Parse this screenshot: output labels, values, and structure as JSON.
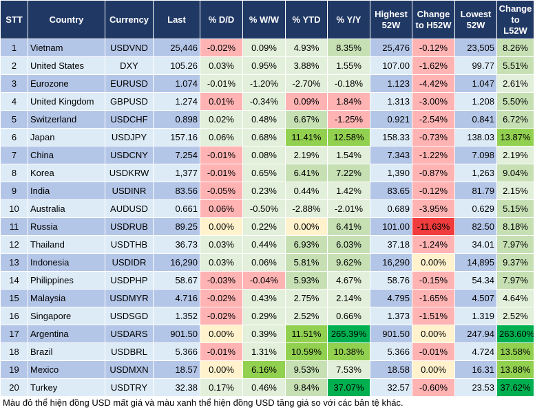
{
  "headers": [
    "STT",
    "Country",
    "Currency",
    "Last",
    "% D/D",
    "% W/W",
    "% YTD",
    "% Y/Y",
    "Highest 52W",
    "Change to H52W",
    "Lowest 52W",
    "Change to L52W"
  ],
  "palette": {
    "header_bg": "#203864",
    "row_odd": "#b4c6e7",
    "row_even": "#ddebf7",
    "pink": "#ffb3b3",
    "light_green": "#e2efda",
    "green": "#c6e0b4",
    "bright_green": "#92d050",
    "dark_green": "#00b050",
    "yellow": "#fff2cc",
    "red": "#f03c3c"
  },
  "rows": [
    {
      "stt": "1",
      "country": "Vietnam",
      "currency": "USDVND",
      "last": "25,446",
      "dd": "-0.02%",
      "ww": "0.09%",
      "ytd": "4.93%",
      "yy": "8.35%",
      "high": "25,476",
      "ch": "-0.12%",
      "low": "23,505",
      "cl": "8.26%",
      "colors": [
        "#ffb3b3",
        "#e2efda",
        "#e2efda",
        "#c6e0b4",
        "#ffb3b3",
        "#c6e0b4"
      ]
    },
    {
      "stt": "2",
      "country": "United States",
      "currency": "DXY",
      "last": "105.26",
      "dd": "0.03%",
      "ww": "0.95%",
      "ytd": "3.88%",
      "yy": "1.55%",
      "high": "107.00",
      "ch": "-1.62%",
      "low": "99.77",
      "cl": "5.51%",
      "colors": [
        "#e2efda",
        "#e2efda",
        "#e2efda",
        "#e2efda",
        "#ffb3b3",
        "#c6e0b4"
      ]
    },
    {
      "stt": "3",
      "country": "Eurozone",
      "currency": "EURUSD",
      "last": "1.074",
      "dd": "-0.01%",
      "ww": "-1.20%",
      "ytd": "-2.70%",
      "yy": "-0.18%",
      "high": "1.123",
      "ch": "-4.42%",
      "low": "1.047",
      "cl": "2.61%",
      "colors": [
        "#e2efda",
        "#e2efda",
        "#e2efda",
        "#e2efda",
        "#ffb3b3",
        "#e2efda"
      ]
    },
    {
      "stt": "4",
      "country": "United Kingdom",
      "currency": "GBPUSD",
      "last": "1.274",
      "dd": "0.01%",
      "ww": "-0.34%",
      "ytd": "0.09%",
      "yy": "1.84%",
      "high": "1.313",
      "ch": "-3.00%",
      "low": "1.208",
      "cl": "5.50%",
      "colors": [
        "#ffb3b3",
        "#e2efda",
        "#ffb3b3",
        "#ffb3b3",
        "#ffb3b3",
        "#c6e0b4"
      ]
    },
    {
      "stt": "5",
      "country": "Switzerland",
      "currency": "USDCHF",
      "last": "0.898",
      "dd": "0.02%",
      "ww": "0.48%",
      "ytd": "6.67%",
      "yy": "-1.25%",
      "high": "0.921",
      "ch": "-2.54%",
      "low": "0.841",
      "cl": "6.72%",
      "colors": [
        "#e2efda",
        "#e2efda",
        "#c6e0b4",
        "#ffb3b3",
        "#ffb3b3",
        "#c6e0b4"
      ]
    },
    {
      "stt": "6",
      "country": "Japan",
      "currency": "USDJPY",
      "last": "157.16",
      "dd": "0.06%",
      "ww": "0.68%",
      "ytd": "11.41%",
      "yy": "12.58%",
      "high": "158.33",
      "ch": "-0.73%",
      "low": "138.03",
      "cl": "13.87%",
      "colors": [
        "#e2efda",
        "#e2efda",
        "#92d050",
        "#92d050",
        "#ffb3b3",
        "#92d050"
      ]
    },
    {
      "stt": "7",
      "country": "China",
      "currency": "USDCNY",
      "last": "7.254",
      "dd": "-0.01%",
      "ww": "0.08%",
      "ytd": "2.19%",
      "yy": "1.54%",
      "high": "7.343",
      "ch": "-1.22%",
      "low": "7.098",
      "cl": "2.19%",
      "colors": [
        "#ffb3b3",
        "#e2efda",
        "#e2efda",
        "#e2efda",
        "#ffb3b3",
        "#e2efda"
      ]
    },
    {
      "stt": "8",
      "country": "Korea",
      "currency": "USDKRW",
      "last": "1,377",
      "dd": "-0.01%",
      "ww": "0.65%",
      "ytd": "6.41%",
      "yy": "7.22%",
      "high": "1,390",
      "ch": "-0.87%",
      "low": "1,263",
      "cl": "9.04%",
      "colors": [
        "#ffb3b3",
        "#e2efda",
        "#c6e0b4",
        "#c6e0b4",
        "#ffb3b3",
        "#c6e0b4"
      ]
    },
    {
      "stt": "9",
      "country": "India",
      "currency": "USDINR",
      "last": "83.56",
      "dd": "-0.05%",
      "ww": "0.23%",
      "ytd": "0.44%",
      "yy": "1.42%",
      "high": "83.65",
      "ch": "-0.12%",
      "low": "81.79",
      "cl": "2.15%",
      "colors": [
        "#ffb3b3",
        "#e2efda",
        "#e2efda",
        "#e2efda",
        "#ffb3b3",
        "#e2efda"
      ]
    },
    {
      "stt": "10",
      "country": "Australia",
      "currency": "AUDUSD",
      "last": "0.661",
      "dd": "0.06%",
      "ww": "-0.50%",
      "ytd": "-2.88%",
      "yy": "-2.01%",
      "high": "0.689",
      "ch": "-3.95%",
      "low": "0.629",
      "cl": "5.15%",
      "colors": [
        "#ffb3b3",
        "#e2efda",
        "#e2efda",
        "#e2efda",
        "#ffb3b3",
        "#c6e0b4"
      ]
    },
    {
      "stt": "11",
      "country": "Russia",
      "currency": "USDRUB",
      "last": "89.25",
      "dd": "0.00%",
      "ww": "0.22%",
      "ytd": "0.00%",
      "yy": "6.41%",
      "high": "101.00",
      "ch": "-11.63%",
      "low": "82.50",
      "cl": "8.18%",
      "colors": [
        "#fff2cc",
        "#e2efda",
        "#fff2cc",
        "#c6e0b4",
        "#f03c3c",
        "#c6e0b4"
      ]
    },
    {
      "stt": "12",
      "country": "Thailand",
      "currency": "USDTHB",
      "last": "36.73",
      "dd": "0.03%",
      "ww": "0.44%",
      "ytd": "6.93%",
      "yy": "6.03%",
      "high": "37.18",
      "ch": "-1.24%",
      "low": "34.01",
      "cl": "7.97%",
      "colors": [
        "#e2efda",
        "#e2efda",
        "#c6e0b4",
        "#c6e0b4",
        "#ffb3b3",
        "#c6e0b4"
      ]
    },
    {
      "stt": "13",
      "country": "Indonesia",
      "currency": "USDIDR",
      "last": "16,290",
      "dd": "0.03%",
      "ww": "0.06%",
      "ytd": "5.81%",
      "yy": "9.62%",
      "high": "16,290",
      "ch": "0.00%",
      "low": "14,895",
      "cl": "9.37%",
      "colors": [
        "#e2efda",
        "#e2efda",
        "#c6e0b4",
        "#c6e0b4",
        "#fff2cc",
        "#c6e0b4"
      ]
    },
    {
      "stt": "14",
      "country": "Philippines",
      "currency": "USDPHP",
      "last": "58.67",
      "dd": "-0.03%",
      "ww": "-0.04%",
      "ytd": "5.93%",
      "yy": "4.67%",
      "high": "58.76",
      "ch": "-0.15%",
      "low": "54.34",
      "cl": "7.97%",
      "colors": [
        "#ffb3b3",
        "#ffb3b3",
        "#c6e0b4",
        "#e2efda",
        "#ffb3b3",
        "#c6e0b4"
      ]
    },
    {
      "stt": "15",
      "country": "Malaysia",
      "currency": "USDMYR",
      "last": "4.716",
      "dd": "-0.02%",
      "ww": "0.43%",
      "ytd": "2.75%",
      "yy": "2.14%",
      "high": "4.795",
      "ch": "-1.65%",
      "low": "4.507",
      "cl": "4.64%",
      "colors": [
        "#ffb3b3",
        "#e2efda",
        "#e2efda",
        "#e2efda",
        "#ffb3b3",
        "#e2efda"
      ]
    },
    {
      "stt": "16",
      "country": "Singapore",
      "currency": "USDSGD",
      "last": "1.352",
      "dd": "-0.02%",
      "ww": "0.29%",
      "ytd": "2.52%",
      "yy": "0.66%",
      "high": "1.373",
      "ch": "-1.51%",
      "low": "1.319",
      "cl": "2.52%",
      "colors": [
        "#ffb3b3",
        "#e2efda",
        "#e2efda",
        "#e2efda",
        "#ffb3b3",
        "#e2efda"
      ]
    },
    {
      "stt": "17",
      "country": "Argentina",
      "currency": "USDARS",
      "last": "901.50",
      "dd": "0.00%",
      "ww": "0.39%",
      "ytd": "11.51%",
      "yy": "265.39%",
      "high": "901.50",
      "ch": "0.00%",
      "low": "247.94",
      "cl": "263.60%",
      "colors": [
        "#fff2cc",
        "#e2efda",
        "#92d050",
        "#00b050",
        "#fff2cc",
        "#00b050"
      ]
    },
    {
      "stt": "18",
      "country": "Brazil",
      "currency": "USDBRL",
      "last": "5.366",
      "dd": "-0.01%",
      "ww": "1.31%",
      "ytd": "10.59%",
      "yy": "10.38%",
      "high": "5.366",
      "ch": "-0.01%",
      "low": "4.724",
      "cl": "13.58%",
      "colors": [
        "#ffb3b3",
        "#e2efda",
        "#92d050",
        "#92d050",
        "#ffb3b3",
        "#92d050"
      ]
    },
    {
      "stt": "19",
      "country": "Mexico",
      "currency": "USDMXN",
      "last": "18.57",
      "dd": "0.00%",
      "ww": "6.16%",
      "ytd": "9.53%",
      "yy": "7.53%",
      "high": "18.58",
      "ch": "0.00%",
      "low": "16.31",
      "cl": "13.88%",
      "colors": [
        "#fff2cc",
        "#92d050",
        "#c6e0b4",
        "#e2efda",
        "#fff2cc",
        "#92d050"
      ]
    },
    {
      "stt": "20",
      "country": "Turkey",
      "currency": "USDTRY",
      "last": "32.38",
      "dd": "0.17%",
      "ww": "0.46%",
      "ytd": "9.84%",
      "yy": "37.07%",
      "high": "32.57",
      "ch": "-0.60%",
      "low": "23.53",
      "cl": "37.62%",
      "colors": [
        "#e2efda",
        "#e2efda",
        "#c6e0b4",
        "#00b050",
        "#ffb3b3",
        "#00b050"
      ]
    }
  ],
  "note": "Màu đỏ thể hiện đồng USD mất giá và màu xanh thể hiện đồng USD tăng giá so với các bản tệ khác."
}
